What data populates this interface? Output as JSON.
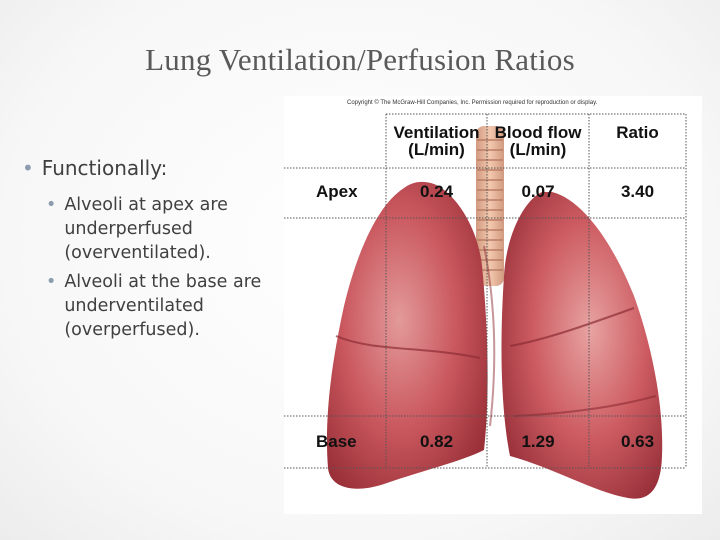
{
  "slide": {
    "title": "Lung Ventilation/Perfusion Ratios",
    "bullets": [
      {
        "text": "Functionally:",
        "children": [
          "Alveoli at apex are underperfused (overventilated).",
          "Alveoli at the base are underventilated (overperfused)."
        ]
      }
    ]
  },
  "figure": {
    "copyright": "Copyright © The McGraw-Hill Companies, Inc. Permission required for reproduction or display.",
    "table": {
      "headers": [
        {
          "line1": "Ventilation",
          "line2": "(L/min)"
        },
        {
          "line1": "Blood flow",
          "line2": "(L/min)"
        },
        {
          "line1": "Ratio",
          "line2": ""
        }
      ],
      "rows": [
        {
          "label": "Apex",
          "ventilation": "0.24",
          "blood_flow": "0.07",
          "ratio": "3.40"
        },
        {
          "label": "Base",
          "ventilation": "0.82",
          "blood_flow": "1.29",
          "ratio": "0.63"
        }
      ]
    },
    "colors": {
      "lung_fill": "#c9575e",
      "lung_highlight": "#e39a9a",
      "lung_shadow": "#9a3038",
      "trachea": "#e8b49a",
      "grid_line": "#555555"
    }
  }
}
